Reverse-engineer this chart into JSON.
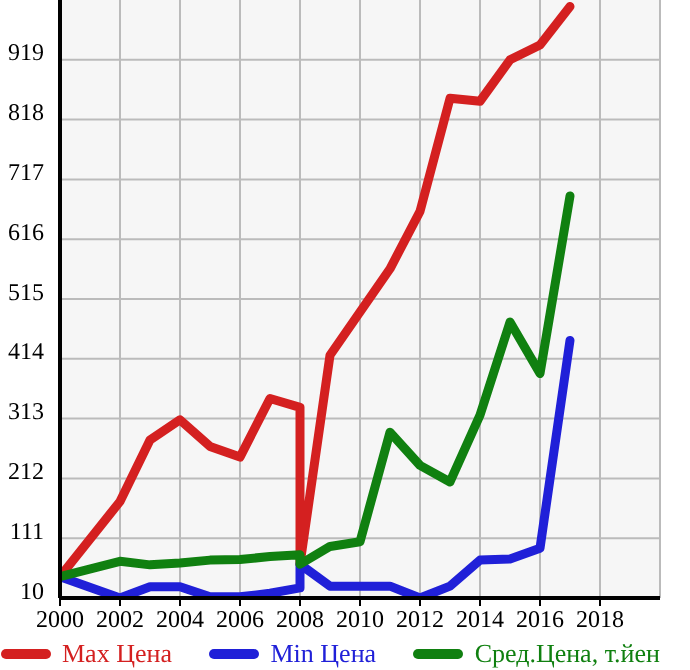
{
  "chart_data": {
    "type": "line",
    "xlim": [
      2000,
      2020
    ],
    "xticks": [
      2000,
      2002,
      2004,
      2006,
      2008,
      2010,
      2012,
      2014,
      2016,
      2018
    ],
    "ylim": [
      10,
      1020
    ],
    "yticks": [
      10,
      111,
      212,
      313,
      414,
      515,
      616,
      717,
      818,
      919
    ],
    "grid": true,
    "legend": "bottom",
    "marker": "none",
    "line_style": "solid",
    "series": [
      {
        "name": "Max Цена",
        "color": "#d42020",
        "x": [
          2000,
          2002,
          2003,
          2004,
          2005,
          2006,
          2007,
          2008,
          2008,
          2009,
          2010,
          2011,
          2012,
          2013,
          2014,
          2015,
          2016,
          2017
        ],
        "values": [
          46,
          173,
          277,
          311,
          266,
          248,
          347,
          332,
          67,
          420,
          493,
          566,
          663,
          854,
          849,
          919,
          944,
          1009
        ]
      },
      {
        "name": "Min Цена",
        "color": "#2020d8",
        "x": [
          2000,
          2002,
          2003,
          2004,
          2005,
          2006,
          2007,
          2008,
          2008,
          2009,
          2010,
          2011,
          2012,
          2013,
          2014,
          2015,
          2016,
          2017
        ],
        "values": [
          46,
          10,
          29,
          29,
          12,
          12,
          18,
          27,
          67,
          30,
          30,
          30,
          10,
          30,
          74,
          76,
          94,
          445
        ]
      },
      {
        "name": "Сред.Цена, т.йен",
        "color": "#108010",
        "x": [
          2000,
          2002,
          2003,
          2004,
          2005,
          2006,
          2007,
          2008,
          2008,
          2009,
          2010,
          2011,
          2012,
          2013,
          2014,
          2015,
          2016,
          2017
        ],
        "values": [
          46,
          72,
          66,
          69,
          74,
          75,
          80,
          83,
          67,
          97,
          105,
          290,
          234,
          206,
          319,
          476,
          389,
          689
        ]
      }
    ]
  }
}
